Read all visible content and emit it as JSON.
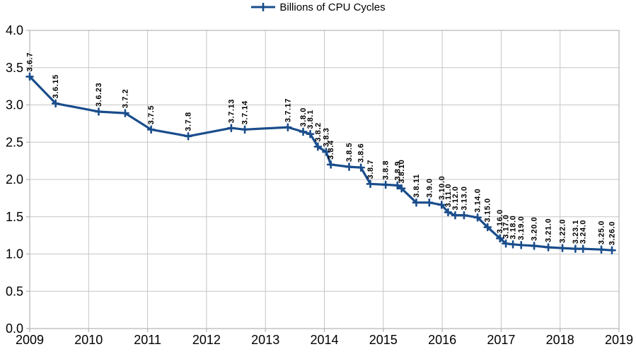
{
  "chart_data": {
    "type": "line",
    "title": "",
    "legend": {
      "label": "Billions of CPU Cycles",
      "position": "top"
    },
    "x_axis": {
      "label": "",
      "range": [
        2009,
        2019
      ],
      "ticks": [
        2009,
        2010,
        2011,
        2012,
        2013,
        2014,
        2015,
        2016,
        2017,
        2018,
        2019
      ]
    },
    "y_axis": {
      "label": "",
      "range": [
        0,
        4
      ],
      "step": 0.5,
      "tick_labels": [
        "0.0",
        "0.5",
        "1.0",
        "1.5",
        "2.0",
        "2.5",
        "3.0",
        "3.5",
        "4.0"
      ]
    },
    "grid": true,
    "series": [
      {
        "name": "Billions of CPU Cycles",
        "color": "#1A4D8C",
        "marker": "plus",
        "points": [
          {
            "label": "3.6.7",
            "x": 2009.0,
            "y": 3.38
          },
          {
            "label": "3.6.15",
            "x": 2009.44,
            "y": 3.02
          },
          {
            "label": "3.6.23",
            "x": 2010.17,
            "y": 2.91
          },
          {
            "label": "3.7.2",
            "x": 2010.62,
            "y": 2.89
          },
          {
            "label": "3.7.5",
            "x": 2011.06,
            "y": 2.67
          },
          {
            "label": "3.7.8",
            "x": 2011.69,
            "y": 2.58
          },
          {
            "label": "3.7.13",
            "x": 2012.42,
            "y": 2.69
          },
          {
            "label": "3.7.14",
            "x": 2012.65,
            "y": 2.67
          },
          {
            "label": "3.7.17",
            "x": 2013.38,
            "y": 2.7
          },
          {
            "label": "3.8.0",
            "x": 2013.64,
            "y": 2.64
          },
          {
            "label": "3.8.1",
            "x": 2013.76,
            "y": 2.61
          },
          {
            "label": "3.8.2",
            "x": 2013.89,
            "y": 2.44
          },
          {
            "label": "3.8.3",
            "x": 2014.03,
            "y": 2.37
          },
          {
            "label": "3.8.4",
            "x": 2014.11,
            "y": 2.2
          },
          {
            "label": "3.8.5",
            "x": 2014.42,
            "y": 2.17
          },
          {
            "label": "3.8.6",
            "x": 2014.62,
            "y": 2.16
          },
          {
            "label": "3.8.7",
            "x": 2014.78,
            "y": 1.94
          },
          {
            "label": "3.8.8",
            "x": 2015.04,
            "y": 1.93
          },
          {
            "label": "3.8.9",
            "x": 2015.24,
            "y": 1.92
          },
          {
            "label": "3.8.10",
            "x": 2015.31,
            "y": 1.88
          },
          {
            "label": "3.8.11",
            "x": 2015.56,
            "y": 1.69
          },
          {
            "label": "3.9.0",
            "x": 2015.78,
            "y": 1.69
          },
          {
            "label": "3.10.0",
            "x": 2015.99,
            "y": 1.66
          },
          {
            "label": "3.11.0",
            "x": 2016.1,
            "y": 1.56
          },
          {
            "label": "3.12.0",
            "x": 2016.22,
            "y": 1.52
          },
          {
            "label": "3.13.0",
            "x": 2016.37,
            "y": 1.52
          },
          {
            "label": "3.14.0",
            "x": 2016.6,
            "y": 1.49
          },
          {
            "label": "3.15.0",
            "x": 2016.77,
            "y": 1.36
          },
          {
            "label": "3.16.0",
            "x": 2016.98,
            "y": 1.21
          },
          {
            "label": "3.17.0",
            "x": 2017.08,
            "y": 1.14
          },
          {
            "label": "3.18.0",
            "x": 2017.2,
            "y": 1.13
          },
          {
            "label": "3.19.0",
            "x": 2017.34,
            "y": 1.12
          },
          {
            "label": "3.20.0",
            "x": 2017.56,
            "y": 1.11
          },
          {
            "label": "3.21.0",
            "x": 2017.8,
            "y": 1.09
          },
          {
            "label": "3.22.0",
            "x": 2018.04,
            "y": 1.08
          },
          {
            "label": "3.23.1",
            "x": 2018.26,
            "y": 1.07
          },
          {
            "label": "3.24.0",
            "x": 2018.39,
            "y": 1.07
          },
          {
            "label": "3.25.0",
            "x": 2018.7,
            "y": 1.06
          },
          {
            "label": "3.26.0",
            "x": 2018.88,
            "y": 1.05
          }
        ]
      }
    ],
    "colors": {
      "series": "#1A4D8C",
      "gridline": "#C6C6C6",
      "axis": "#B3B3B3",
      "text": "#000000",
      "background": "#FFFFFF"
    }
  }
}
